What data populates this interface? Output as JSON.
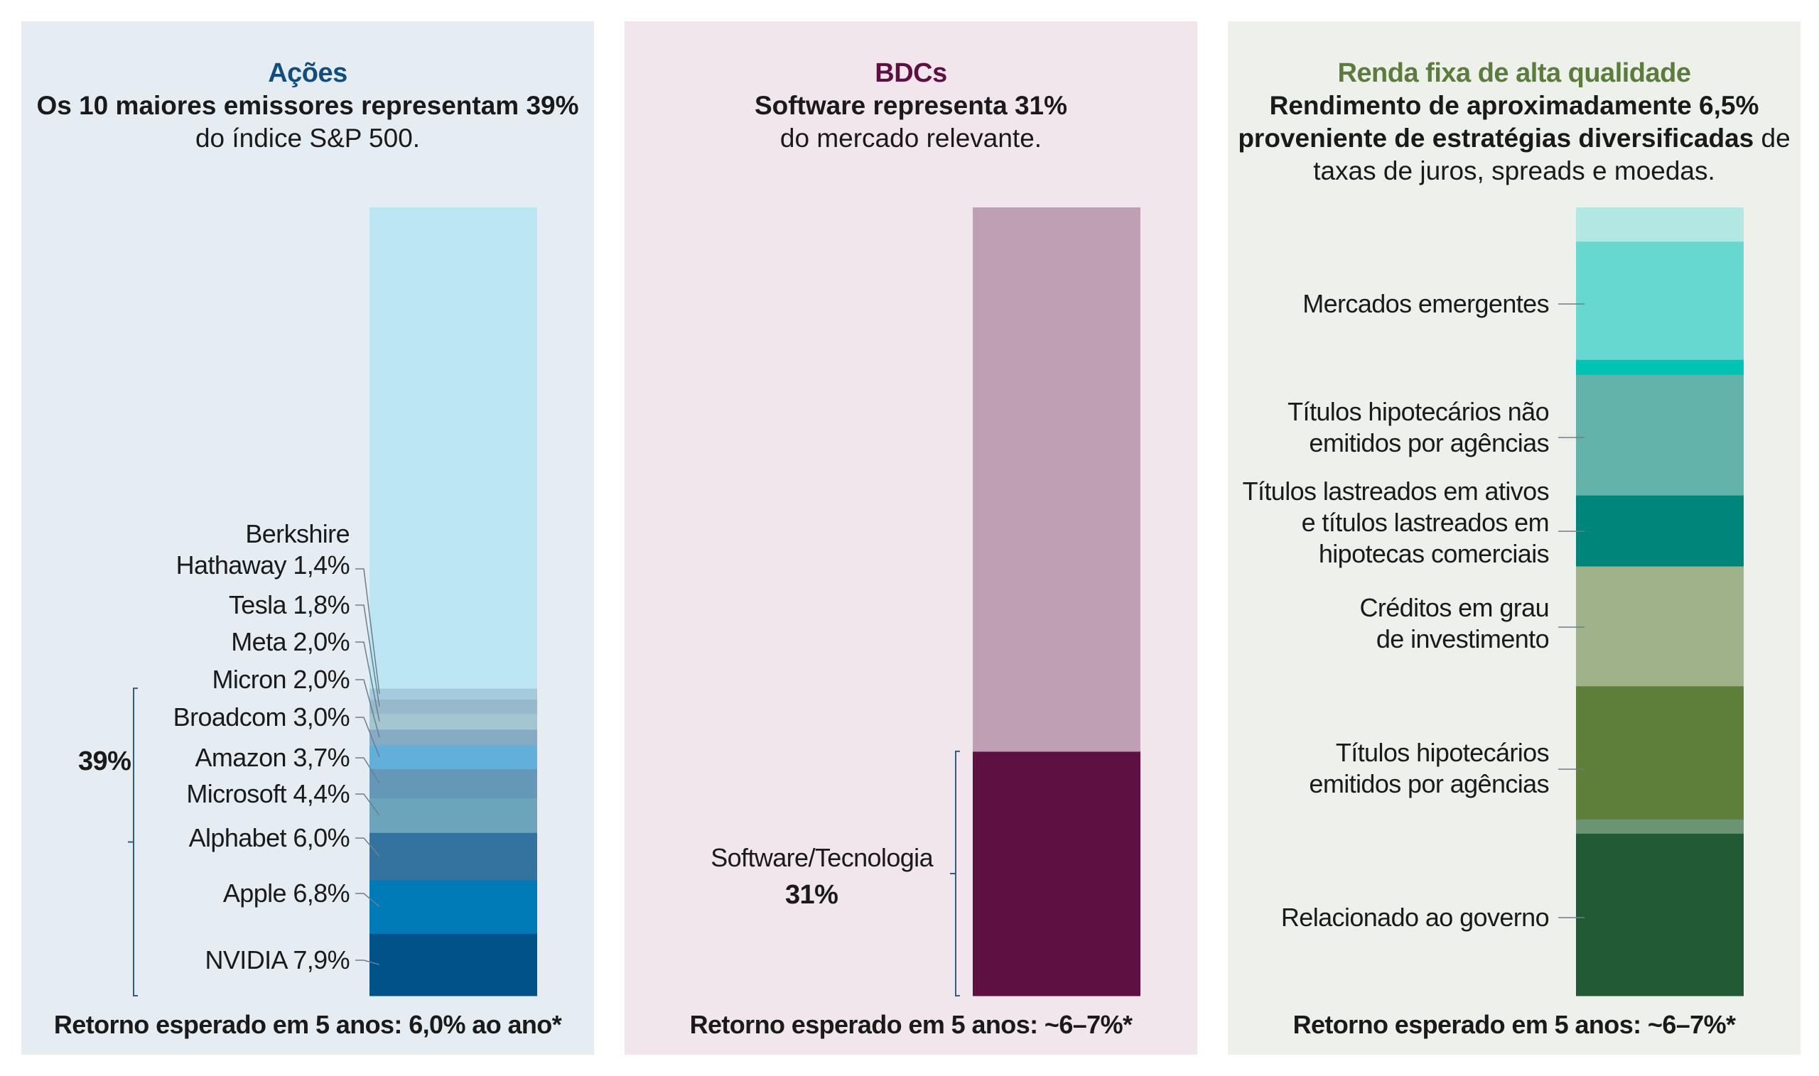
{
  "colors": {
    "panel_bg": [
      "#e5edf3",
      "#f0e6ec",
      "#edf0eb"
    ],
    "title": [
      "#0f4e7d",
      "#5e1042",
      "#5b7d3c"
    ],
    "leader": "#6f7e8a"
  },
  "panels": [
    {
      "title": "Ações",
      "line1_bold": "Os 10 maiores emissores representam 39%",
      "line2": "do índice S&P 500.",
      "bracket_label": "39%",
      "footer": "Retorno esperado em 5 anos: 6,0% ao ano*",
      "labels": [
        {
          "l1": "Berkshire",
          "l2": "Hathaway 1,4%"
        },
        {
          "l1": "Tesla 1,8%"
        },
        {
          "l1": "Meta 2,0%"
        },
        {
          "l1": "Micron 2,0%"
        },
        {
          "l1": "Broadcom 3,0%"
        },
        {
          "l1": "Amazon 3,7%"
        },
        {
          "l1": "Microsoft 4,4%"
        },
        {
          "l1": "Alphabet 6,0%"
        },
        {
          "l1": "Apple 6,8%"
        },
        {
          "l1": "NVIDIA 7,9%"
        }
      ]
    },
    {
      "title": "BDCs",
      "line1_bold": "Software representa 31%",
      "line2": "do mercado relevante.",
      "seg_label": "Software/Tecnologia",
      "seg_value": "31%",
      "footer": "Retorno esperado em 5 anos: ~6–7%*"
    },
    {
      "title": "Renda fixa de alta qualidade",
      "line1_bold": "Rendimento de aproximadamente 6,5%",
      "line2_bold": "proveniente de estratégias diversificadas",
      "line2_rest": " de",
      "line3": "taxas de juros, spreads e moedas.",
      "footer": "Retorno esperado em 5 anos: ~6–7%*",
      "labels": [
        {
          "l1": "Mercados emergentes"
        },
        {
          "l1": "Títulos hipotecários não",
          "l2": "emitidos por agências"
        },
        {
          "l1": "Títulos lastreados em ativos",
          "l2": "e títulos lastreados em",
          "l3": "hipotecas comerciais"
        },
        {
          "l1": "Créditos em grau",
          "l2": "de investimento"
        },
        {
          "l1": "Títulos hipotecários",
          "l2": "emitidos por agências"
        },
        {
          "l1": "Relacionado ao governo"
        }
      ]
    }
  ],
  "chart_data": [
    {
      "type": "bar",
      "stacked": true,
      "title": "Ações",
      "unit": "% do índice S&P 500",
      "segments_bottom_to_top": [
        {
          "name": "NVIDIA",
          "value": 7.9,
          "color": "#005288"
        },
        {
          "name": "Apple",
          "value": 6.8,
          "color": "#007bb8"
        },
        {
          "name": "Alphabet",
          "value": 6.0,
          "color": "#34739f"
        },
        {
          "name": "Microsoft",
          "value": 4.4,
          "color": "#6ba4bb"
        },
        {
          "name": "Amazon",
          "value": 3.7,
          "color": "#6597b7"
        },
        {
          "name": "Broadcom",
          "value": 3.0,
          "color": "#62b0da"
        },
        {
          "name": "Micron",
          "value": 2.0,
          "color": "#86acc5"
        },
        {
          "name": "Meta",
          "value": 2.0,
          "color": "#a4c6d1"
        },
        {
          "name": "Tesla",
          "value": 1.8,
          "color": "#98b8cc"
        },
        {
          "name": "Berkshire Hathaway",
          "value": 1.4,
          "color": "#a5cbe0"
        },
        {
          "name": "",
          "value": 61.0,
          "color": "#bde6f3"
        }
      ],
      "total": 100
    },
    {
      "type": "bar",
      "stacked": true,
      "title": "BDCs",
      "segments_bottom_to_top": [
        {
          "name": "Software/Tecnologia",
          "value": 31,
          "color": "#5e1042"
        },
        {
          "name": "",
          "value": 69,
          "color": "#bf9fb3"
        }
      ],
      "total": 100
    },
    {
      "type": "bar",
      "stacked": true,
      "title": "Renda fixa de alta qualidade",
      "segments_bottom_to_top": [
        {
          "name": "Relacionado ao governo",
          "value": 20.6,
          "color": "#225a35"
        },
        {
          "name": "",
          "value": 1.8,
          "color": "#6a9472"
        },
        {
          "name": "Títulos hipotecários emitidos por agências",
          "value": 16.9,
          "color": "#5e7f39"
        },
        {
          "name": "Créditos em grau de investimento",
          "value": 15.2,
          "color": "#9fb289"
        },
        {
          "name": "Títulos lastreados em ativos e títulos lastreados em hipotecas comerciais",
          "value": 9.0,
          "color": "#00857a"
        },
        {
          "name": "Títulos hipotecários não emitidos por agências",
          "value": 15.3,
          "color": "#63b3aa"
        },
        {
          "name": "",
          "value": 1.9,
          "color": "#00c2b5"
        },
        {
          "name": "Mercados emergentes",
          "value": 15.0,
          "color": "#67d8cf"
        },
        {
          "name": "",
          "value": 4.3,
          "color": "#b3e7e4"
        }
      ],
      "total": 100
    }
  ]
}
